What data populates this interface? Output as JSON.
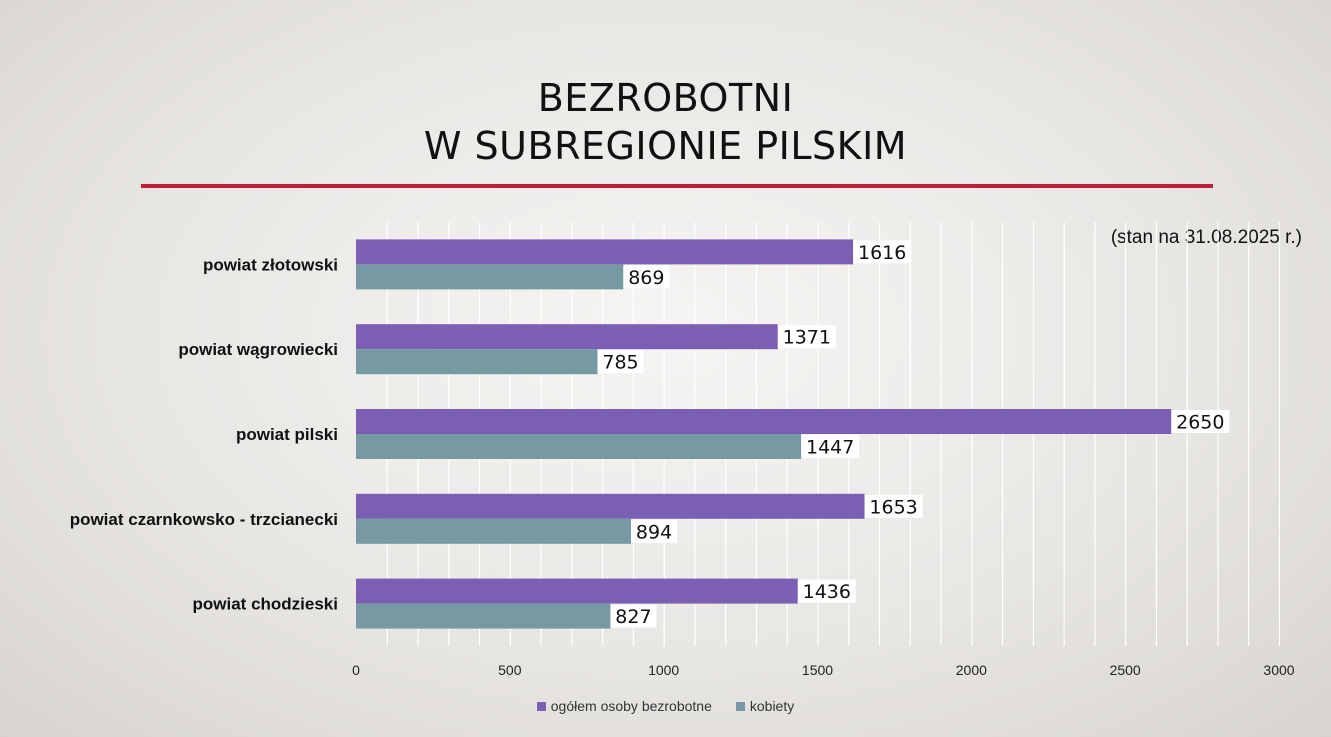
{
  "slide": {
    "title_line1": "BEZROBOTNI",
    "title_line2": "W SUBREGIONIE PILSKIM",
    "note": "(stan na 31.08.2025 r.)"
  },
  "colors": {
    "accent_rule": "#be1e3c",
    "series_total": "#7b5fb3",
    "series_women": "#7799a3"
  },
  "chart_data": {
    "type": "bar",
    "orientation": "horizontal",
    "categories": [
      "powiat złotowski",
      "powiat wągrowiecki",
      "powiat pilski",
      "powiat czarnkowsko - trzcianecki",
      "powiat chodzieski"
    ],
    "series": [
      {
        "name": "ogółem osoby bezrobotne",
        "color": "#7b5fb3",
        "values": [
          1616,
          1371,
          2650,
          1653,
          1436
        ]
      },
      {
        "name": "kobiety",
        "color": "#7799a3",
        "values": [
          869,
          785,
          1447,
          894,
          827
        ]
      }
    ],
    "xlim": [
      0,
      3000
    ],
    "xticks": [
      0,
      500,
      1000,
      1500,
      2000,
      2500,
      3000
    ],
    "grid": true,
    "legend_position": "bottom",
    "data_labels": true
  }
}
